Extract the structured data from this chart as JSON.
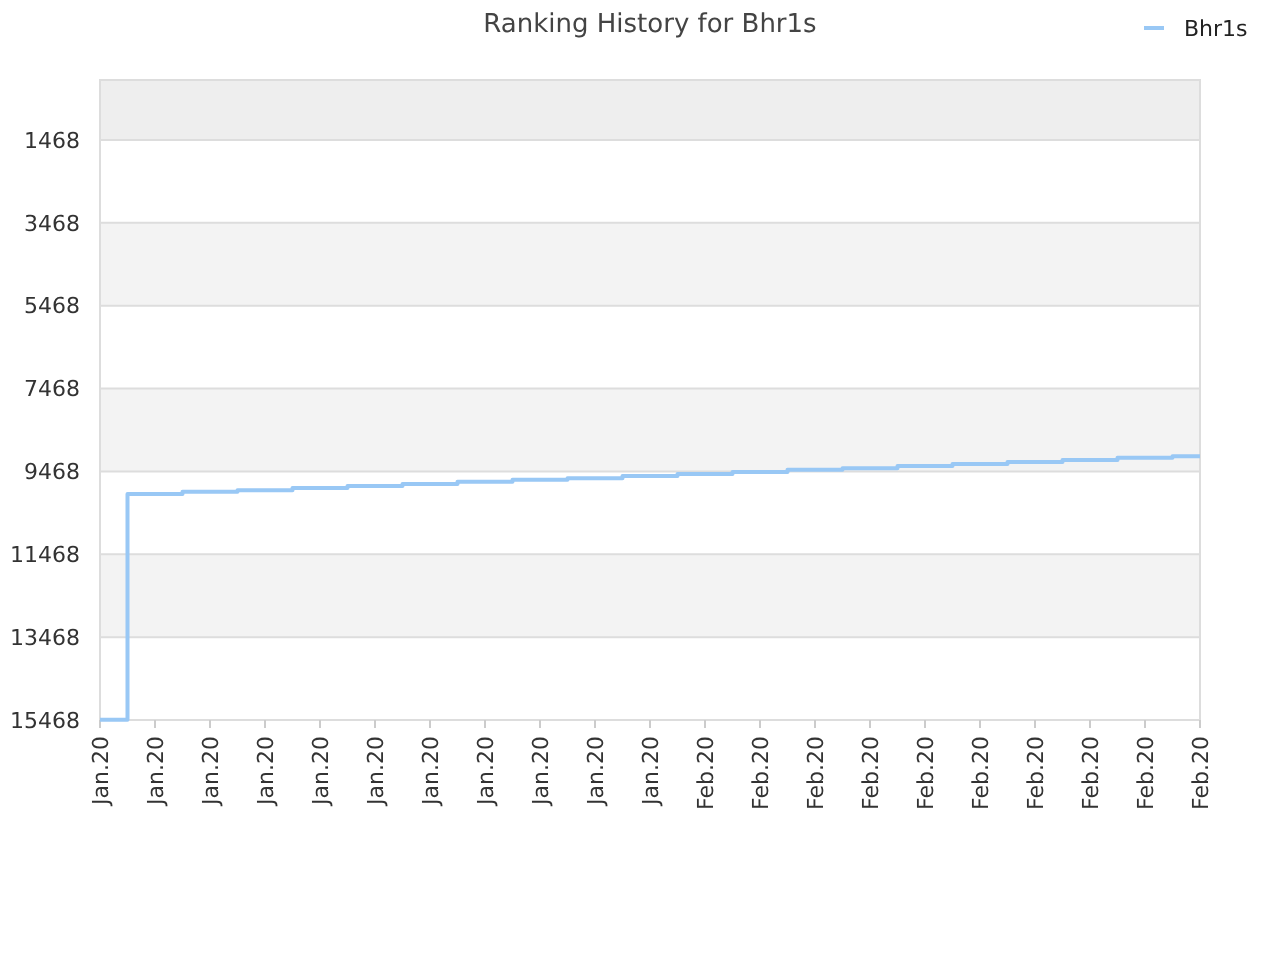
{
  "chart_data": {
    "type": "step",
    "title": "Ranking History for Bhr1s",
    "categories": [
      "Jan.20",
      "Jan.20",
      "Jan.20",
      "Jan.20",
      "Jan.20",
      "Jan.20",
      "Jan.20",
      "Jan.20",
      "Jan.20",
      "Jan.20",
      "Jan.20",
      "Feb.20",
      "Feb.20",
      "Feb.20",
      "Feb.20",
      "Feb.20",
      "Feb.20",
      "Feb.20",
      "Feb.20",
      "Feb.20",
      "Feb.20"
    ],
    "series": [
      {
        "name": "Bhr1s",
        "color": "#99c8f5",
        "values": [
          15460,
          10010,
          9960,
          9920,
          9870,
          9820,
          9770,
          9720,
          9670,
          9630,
          9580,
          9530,
          9480,
          9430,
          9390,
          9340,
          9290,
          9240,
          9190,
          9140,
          9100
        ]
      }
    ],
    "ylim": [
      15468,
      20
    ],
    "yticks": [
      1468,
      3468,
      5468,
      7468,
      9468,
      11468,
      13468,
      15468
    ],
    "bands": [
      {
        "axis": "y",
        "from": 20,
        "to": 1468,
        "color": "#eeeeee"
      },
      {
        "axis": "y",
        "from": 3468,
        "to": 5468,
        "color": "#f3f3f3"
      },
      {
        "axis": "y",
        "from": 7468,
        "to": 9468,
        "color": "#f3f3f3"
      },
      {
        "axis": "y",
        "from": 11468,
        "to": 13468,
        "color": "#f3f3f3"
      }
    ],
    "grid": "y",
    "legend": "top right"
  }
}
